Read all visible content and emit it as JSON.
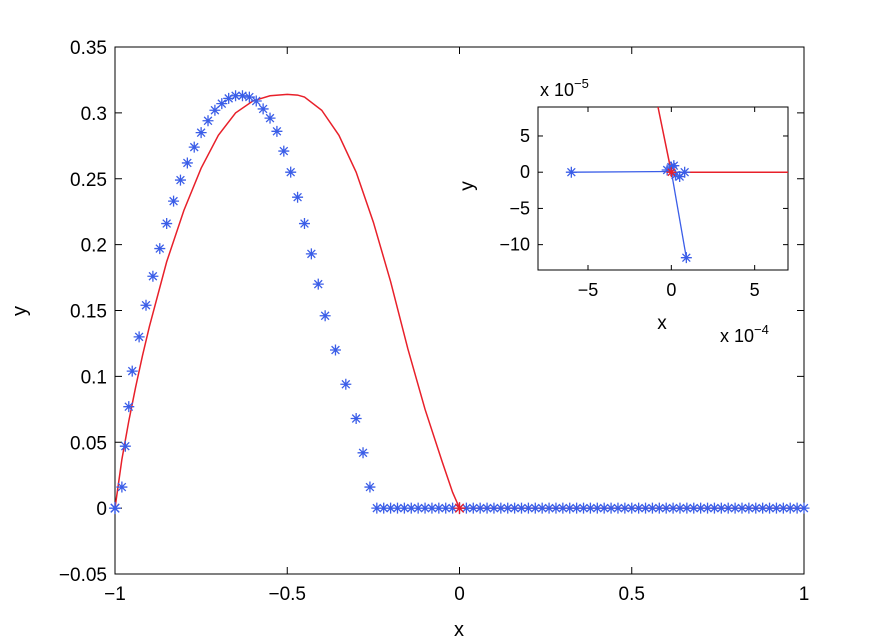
{
  "chart_data": [
    {
      "type": "line",
      "xlabel": "x",
      "ylabel": "y",
      "xlim": [
        -1,
        1
      ],
      "ylim": [
        -0.05,
        0.35
      ],
      "xticks": [
        -1,
        -0.5,
        0,
        0.5,
        1
      ],
      "xtick_labels": [
        "−1",
        "−0.5",
        "0",
        "0.5",
        "1"
      ],
      "yticks": [
        -0.05,
        0,
        0.05,
        0.1,
        0.15,
        0.2,
        0.25,
        0.3,
        0.35
      ],
      "ytick_labels": [
        "−0.05",
        "0",
        "0.05",
        "0.1",
        "0.15",
        "0.2",
        "0.25",
        "0.3",
        "0.35"
      ],
      "grid": false,
      "colors": {
        "line": "#e8202a",
        "markers": "#3b5ee8"
      },
      "series": [
        {
          "style": "solid red line",
          "x": [
            -1.0,
            -0.98,
            -0.96,
            -0.94,
            -0.92,
            -0.9,
            -0.85,
            -0.8,
            -0.75,
            -0.7,
            -0.65,
            -0.6,
            -0.55,
            -0.5,
            -0.47,
            -0.45,
            -0.4,
            -0.35,
            -0.3,
            -0.25,
            -0.2,
            -0.15,
            -0.1,
            -0.05,
            -0.02,
            0.0,
            0.25,
            0.5,
            0.75,
            1.0
          ],
          "y": [
            0.0,
            0.037,
            0.066,
            0.092,
            0.116,
            0.138,
            0.187,
            0.226,
            0.258,
            0.283,
            0.3,
            0.309,
            0.313,
            0.314,
            0.3135,
            0.312,
            0.302,
            0.283,
            0.255,
            0.217,
            0.172,
            0.121,
            0.075,
            0.035,
            0.012,
            0.0,
            0.0,
            0.0,
            0.0,
            0.0
          ]
        },
        {
          "style": "blue asterisk markers",
          "x": [
            -1.0,
            -0.98,
            -0.97,
            -0.96,
            -0.95,
            -0.93,
            -0.91,
            -0.89,
            -0.87,
            -0.85,
            -0.83,
            -0.81,
            -0.79,
            -0.77,
            -0.75,
            -0.73,
            -0.71,
            -0.69,
            -0.67,
            -0.65,
            -0.63,
            -0.61,
            -0.59,
            -0.57,
            -0.55,
            -0.53,
            -0.51,
            -0.49,
            -0.47,
            -0.45,
            -0.43,
            -0.41,
            -0.39,
            -0.36,
            -0.33,
            -0.3,
            -0.28,
            -0.26,
            -0.24,
            -0.22,
            -0.2,
            -0.18,
            -0.16,
            -0.14,
            -0.12,
            -0.1,
            -0.08,
            -0.06,
            -0.04,
            -0.02,
            0.0,
            0.02,
            0.04,
            0.06,
            0.08,
            0.1,
            0.12,
            0.14,
            0.16,
            0.18,
            0.2,
            0.22,
            0.24,
            0.26,
            0.28,
            0.3,
            0.32,
            0.34,
            0.36,
            0.38,
            0.4,
            0.42,
            0.44,
            0.46,
            0.48,
            0.5,
            0.52,
            0.54,
            0.56,
            0.58,
            0.6,
            0.62,
            0.64,
            0.66,
            0.68,
            0.7,
            0.72,
            0.74,
            0.76,
            0.78,
            0.8,
            0.82,
            0.84,
            0.86,
            0.88,
            0.9,
            0.92,
            0.94,
            0.96,
            0.98,
            1.0
          ],
          "y": [
            0.0,
            0.016,
            0.047,
            0.077,
            0.104,
            0.13,
            0.154,
            0.176,
            0.197,
            0.216,
            0.233,
            0.249,
            0.262,
            0.274,
            0.285,
            0.294,
            0.302,
            0.307,
            0.311,
            0.313,
            0.313,
            0.312,
            0.309,
            0.303,
            0.296,
            0.286,
            0.271,
            0.255,
            0.236,
            0.216,
            0.193,
            0.17,
            0.146,
            0.12,
            0.094,
            0.068,
            0.042,
            0.016,
            0.0,
            0.0,
            0.0,
            0.0,
            0.0,
            0.0,
            0.0,
            0.0,
            0.0,
            0.0,
            0.0,
            0.0,
            0.0,
            0.0,
            0.0,
            0.0,
            0.0,
            0.0,
            0.0,
            0.0,
            0.0,
            0.0,
            0.0,
            0.0,
            0.0,
            0.0,
            0.0,
            0.0,
            0.0,
            0.0,
            0.0,
            0.0,
            0.0,
            0.0,
            0.0,
            0.0,
            0.0,
            0.0,
            0.0,
            0.0,
            0.0,
            0.0,
            0.0,
            0.0,
            0.0,
            0.0,
            0.0,
            0.0,
            0.0,
            0.0,
            0.0,
            0.0,
            0.0,
            0.0,
            0.0,
            0.0,
            0.0,
            0.0,
            0.0,
            0.0,
            0.0,
            0.0,
            0.0
          ]
        }
      ],
      "extra_points": [
        {
          "x": -1.0,
          "y": 0.0,
          "color": "blue"
        },
        {
          "x": 0.0,
          "y": 0.0,
          "color": "red"
        }
      ]
    },
    {
      "type": "line",
      "inset": true,
      "xlabel": "x",
      "ylabel": "y",
      "x_exponent_label": "x 10",
      "x_exponent_power": "−4",
      "y_exponent_label": "x 10",
      "y_exponent_power": "−5",
      "xlim": [
        -8,
        7
      ],
      "ylim": [
        -13.5,
        9
      ],
      "xticks": [
        -5,
        0,
        5
      ],
      "xtick_labels": [
        "−5",
        "0",
        "5"
      ],
      "yticks": [
        -10,
        -5,
        0,
        5
      ],
      "ytick_labels": [
        "−10",
        "−5",
        "0",
        "5"
      ],
      "grid": false,
      "series": [
        {
          "style": "solid red line",
          "x": [
            -0.8,
            0.0,
            7.0
          ],
          "y": [
            9.0,
            0.0,
            0.0
          ]
        },
        {
          "style": "blue line with asterisk markers",
          "segments": [
            {
              "x": [
                -6.0,
                0.0
              ],
              "y": [
                0.0,
                0.1
              ]
            },
            {
              "x": [
                0.0,
                0.9
              ],
              "y": [
                0.1,
                -11.8
              ]
            },
            {
              "x": [
                0.0,
                0.8
              ],
              "y": [
                0.0,
                0.0
              ]
            }
          ],
          "markers_x": [
            -6.0,
            0.9,
            0.0,
            0.25,
            -0.25,
            0.5,
            0.15,
            0.8
          ],
          "markers_y": [
            0.0,
            -11.8,
            0.7,
            -0.4,
            0.3,
            -0.6,
            0.9,
            0.0
          ]
        }
      ],
      "extra_points": [
        {
          "x": 0.0,
          "y": 0.0,
          "color": "red"
        }
      ]
    }
  ]
}
